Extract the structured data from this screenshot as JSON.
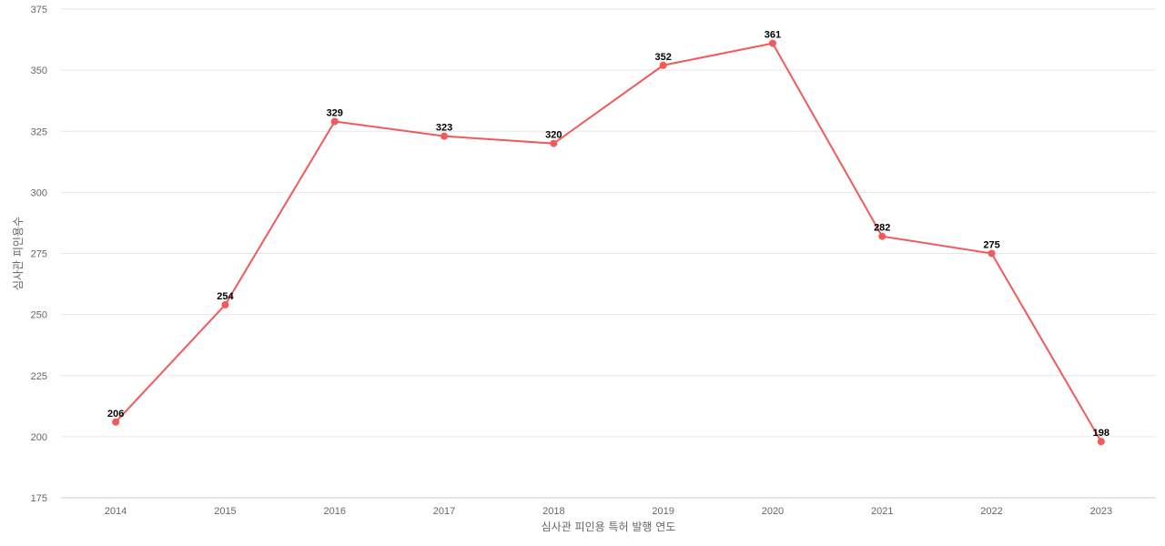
{
  "chart_data": {
    "type": "line",
    "title": "",
    "xlabel": "심사관 피인용 특허 발행 연도",
    "ylabel": "심사관 피인용수",
    "categories": [
      "2014",
      "2015",
      "2016",
      "2017",
      "2018",
      "2019",
      "2020",
      "2021",
      "2022",
      "2023"
    ],
    "series": [
      {
        "values": [
          206,
          254,
          329,
          323,
          320,
          352,
          361,
          282,
          275,
          198
        ]
      }
    ],
    "ylim": [
      175,
      375
    ],
    "yticks": [
      175,
      200,
      225,
      250,
      275,
      300,
      325,
      350,
      375
    ],
    "grid": true,
    "legend": "none",
    "data_labels": true
  },
  "colors": {
    "line": "#f05a5a",
    "grid": "#e6e6e6",
    "axis": "#cccccc",
    "text": "#666666",
    "label": "#000000"
  }
}
